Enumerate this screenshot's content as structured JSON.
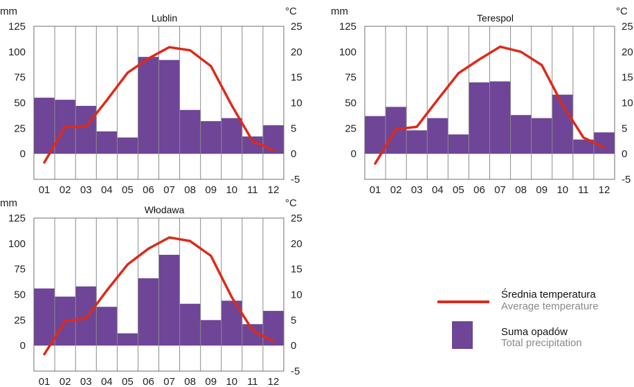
{
  "chart_data": [
    {
      "type": "bar+line",
      "title": "Lublin",
      "y_left_unit": "mm",
      "y_right_unit": "°C",
      "categories": [
        "01",
        "02",
        "03",
        "04",
        "05",
        "06",
        "07",
        "08",
        "09",
        "10",
        "11",
        "12"
      ],
      "y_left_ticks": [
        "125",
        "100",
        "75",
        "50",
        "25",
        "0"
      ],
      "y_right_ticks": [
        "25",
        "20",
        "15",
        "10",
        "5",
        "0",
        "-5"
      ],
      "y_left_lim": [
        -25,
        125
      ],
      "y_right_lim": [
        -5,
        25
      ],
      "series": [
        {
          "name": "Suma opadów",
          "kind": "bar",
          "axis": "left",
          "values": [
            55,
            53,
            47,
            22,
            16,
            95,
            92,
            43,
            32,
            35,
            17,
            28
          ]
        },
        {
          "name": "Średnia temperatura",
          "kind": "line",
          "axis": "right",
          "values": [
            -1.7,
            5.3,
            5.3,
            10.5,
            15.9,
            18.7,
            20.9,
            20.3,
            17.2,
            9.5,
            2.5,
            0.7
          ]
        }
      ]
    },
    {
      "type": "bar+line",
      "title": "Terespol",
      "y_left_unit": "mm",
      "y_right_unit": "°C",
      "categories": [
        "01",
        "02",
        "03",
        "04",
        "05",
        "06",
        "07",
        "08",
        "09",
        "10",
        "11",
        "12"
      ],
      "y_left_ticks": [
        "125",
        "100",
        "75",
        "50",
        "25",
        "0"
      ],
      "y_right_ticks": [
        "25",
        "20",
        "15",
        "10",
        "5",
        "0",
        "-5"
      ],
      "y_left_lim": [
        -25,
        125
      ],
      "y_right_lim": [
        -5,
        25
      ],
      "series": [
        {
          "name": "Suma opadów",
          "kind": "bar",
          "axis": "left",
          "values": [
            37,
            46,
            23,
            35,
            19,
            70,
            71,
            38,
            35,
            58,
            14,
            21
          ]
        },
        {
          "name": "Średnia temperatura",
          "kind": "line",
          "axis": "right",
          "values": [
            -1.9,
            4.8,
            5.3,
            10.6,
            15.8,
            18.5,
            21.0,
            20.0,
            17.4,
            9.6,
            3.2,
            1.2
          ]
        }
      ]
    },
    {
      "type": "bar+line",
      "title": "Włodawa",
      "y_left_unit": "mm",
      "y_right_unit": "°C",
      "categories": [
        "01",
        "02",
        "03",
        "04",
        "05",
        "06",
        "07",
        "08",
        "09",
        "10",
        "11",
        "12"
      ],
      "y_left_ticks": [
        "125",
        "100",
        "75",
        "50",
        "25",
        "0"
      ],
      "y_right_ticks": [
        "25",
        "20",
        "15",
        "10",
        "5",
        "0",
        "-5"
      ],
      "y_left_lim": [
        -25,
        125
      ],
      "y_right_lim": [
        -5,
        25
      ],
      "series": [
        {
          "name": "Suma opadów",
          "kind": "bar",
          "axis": "left",
          "values": [
            56,
            48,
            58,
            38,
            12,
            66,
            89,
            41,
            25,
            44,
            21,
            34
          ]
        },
        {
          "name": "Średnia temperatura",
          "kind": "line",
          "axis": "right",
          "values": [
            -1.7,
            4.8,
            5.3,
            10.8,
            15.9,
            19.0,
            21.2,
            20.5,
            17.6,
            9.5,
            3.0,
            0.8
          ]
        }
      ]
    }
  ],
  "legend": {
    "line_label": "Średnia temperatura",
    "line_label_en": "Average temperature",
    "bar_label": "Suma opadów",
    "bar_label_en": "Total precipitation"
  },
  "colors": {
    "bar": "#6f4597",
    "line": "#dd2a1a",
    "grid": "#8a8a8a"
  }
}
